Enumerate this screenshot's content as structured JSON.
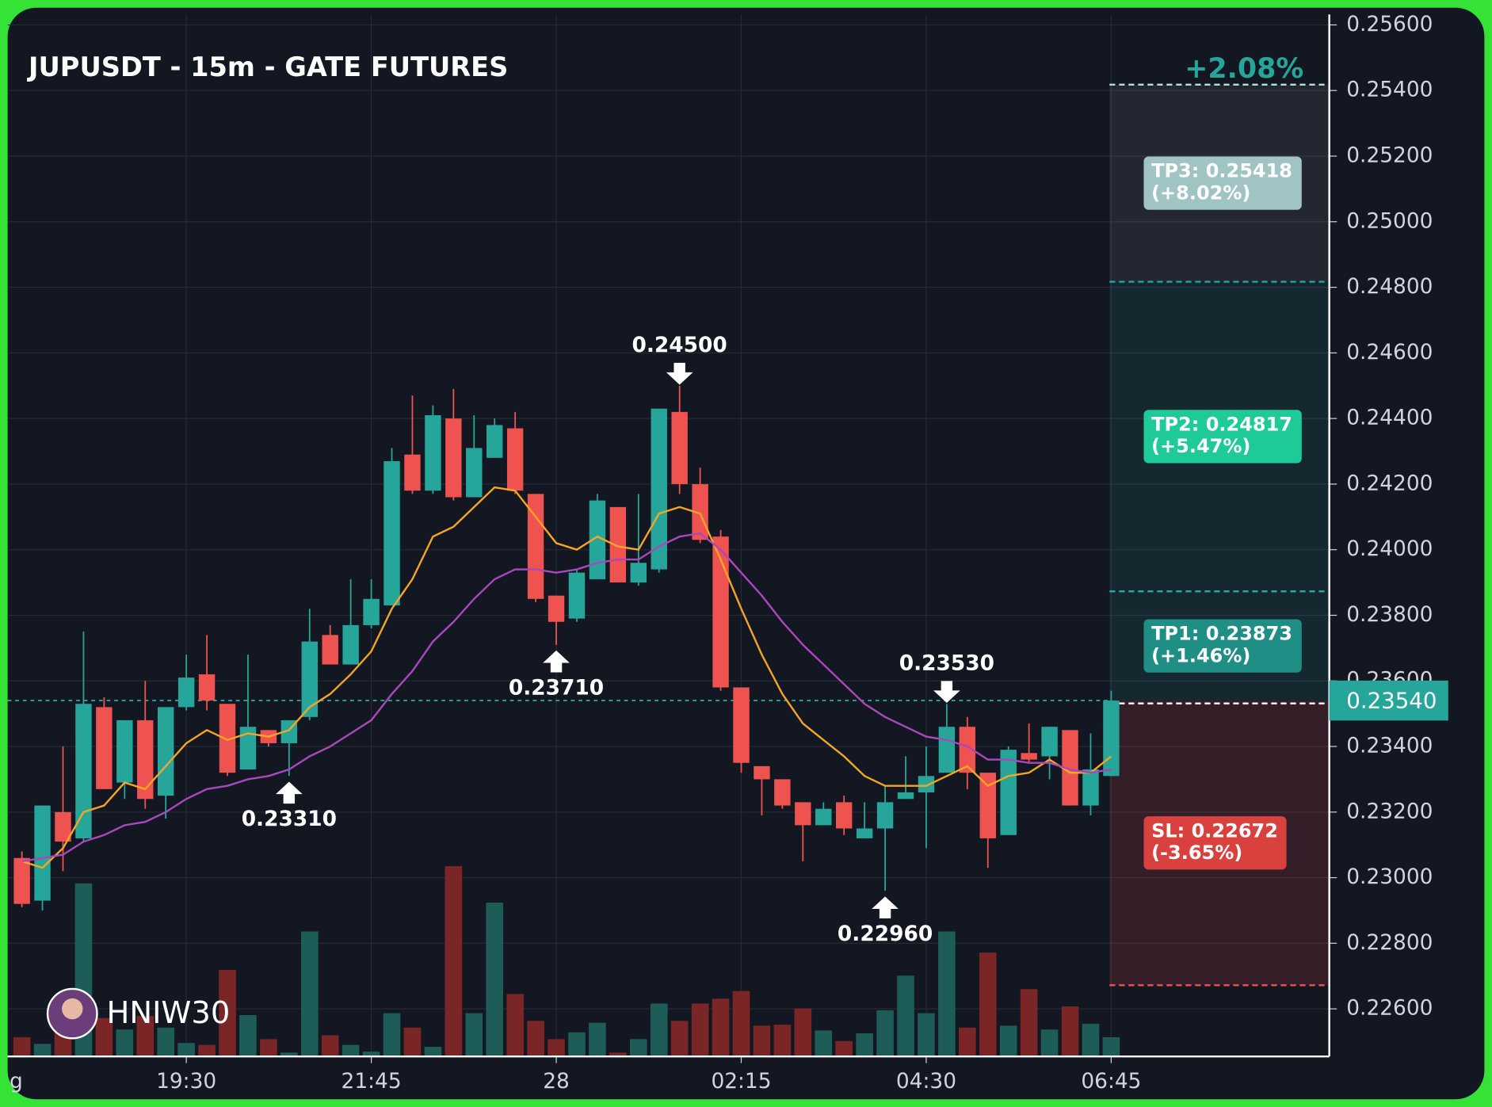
{
  "chart_data": {
    "type": "candlestick",
    "title": "JUPUSDT - 15m - GATE FUTURES",
    "change": "+2.08%",
    "watermark": "HNIW30",
    "ylim": [
      0.22455,
      0.25632
    ],
    "yticks": [
      {
        "value": 0.256,
        "label": "0.25600"
      },
      {
        "value": 0.254,
        "label": "0.25400"
      },
      {
        "value": 0.252,
        "label": "0.25200"
      },
      {
        "value": 0.25,
        "label": "0.25000"
      },
      {
        "value": 0.248,
        "label": "0.24800"
      },
      {
        "value": 0.246,
        "label": "0.24600"
      },
      {
        "value": 0.244,
        "label": "0.24400"
      },
      {
        "value": 0.242,
        "label": "0.24200"
      },
      {
        "value": 0.24,
        "label": "0.24000"
      },
      {
        "value": 0.238,
        "label": "0.23800"
      },
      {
        "value": 0.236,
        "label": "0.23600"
      },
      {
        "value": 0.234,
        "label": "0.23400"
      },
      {
        "value": 0.232,
        "label": "0.23200"
      },
      {
        "value": 0.23,
        "label": "0.23000"
      },
      {
        "value": 0.228,
        "label": "0.22800"
      },
      {
        "value": 0.226,
        "label": "0.22600"
      }
    ],
    "grid": true,
    "clipped_x_label": "g",
    "categories": [
      null,
      null,
      null,
      null,
      null,
      null,
      null,
      null,
      "19:30",
      null,
      null,
      null,
      null,
      null,
      null,
      null,
      null,
      "21:45",
      null,
      null,
      null,
      null,
      null,
      null,
      null,
      null,
      "28",
      null,
      null,
      null,
      null,
      null,
      null,
      null,
      null,
      "02:15",
      null,
      null,
      null,
      null,
      null,
      null,
      null,
      null,
      "04:30",
      null,
      null,
      null,
      null,
      null,
      null,
      null,
      null,
      "06:45"
    ],
    "open": [
      0.2306,
      0.2293,
      0.232,
      0.2312,
      0.2352,
      0.2329,
      0.2348,
      0.2325,
      0.2352,
      0.2362,
      0.2353,
      0.2333,
      0.2345,
      0.2341,
      0.2349,
      0.2374,
      0.2365,
      0.2377,
      0.2383,
      0.2429,
      0.2418,
      0.244,
      0.2416,
      0.2428,
      0.2437,
      0.2417,
      0.2386,
      0.2379,
      0.2391,
      0.2413,
      0.239,
      0.2394,
      0.2442,
      0.242,
      0.2404,
      0.2358,
      0.2334,
      0.233,
      0.2323,
      0.2316,
      0.2323,
      0.2312,
      0.2315,
      0.2324,
      0.2326,
      0.2332,
      0.2346,
      0.2332,
      0.2313,
      0.2338,
      0.2337,
      0.2345,
      0.2322,
      0.2331
    ],
    "high": [
      0.2308,
      0.2322,
      0.234,
      0.2375,
      0.2355,
      0.2348,
      0.236,
      0.2352,
      0.2368,
      0.2374,
      0.2353,
      0.2368,
      0.2345,
      0.2348,
      0.2382,
      0.2377,
      0.2391,
      0.2391,
      0.2431,
      0.2447,
      0.2444,
      0.2449,
      0.2441,
      0.244,
      0.2442,
      0.2417,
      0.2386,
      0.2394,
      0.2417,
      0.2413,
      0.2417,
      0.2443,
      0.245,
      0.2425,
      0.2406,
      0.2358,
      0.2334,
      0.233,
      0.2323,
      0.2323,
      0.2325,
      0.2323,
      0.2328,
      0.2337,
      0.234,
      0.2353,
      0.2349,
      0.2332,
      0.234,
      0.2347,
      0.2346,
      0.2345,
      0.2344,
      0.2357
    ],
    "low": [
      0.2291,
      0.229,
      0.2302,
      0.2311,
      0.2327,
      0.2324,
      0.2321,
      0.2318,
      0.2351,
      0.2351,
      0.2331,
      0.2333,
      0.234,
      0.2331,
      0.2348,
      0.2365,
      0.2365,
      0.2376,
      0.2383,
      0.2417,
      0.2417,
      0.2415,
      0.2416,
      0.2428,
      0.2417,
      0.2384,
      0.2371,
      0.2378,
      0.2391,
      0.239,
      0.2389,
      0.2393,
      0.2417,
      0.2402,
      0.2357,
      0.2332,
      0.2319,
      0.2321,
      0.2305,
      0.2316,
      0.2313,
      0.2312,
      0.2296,
      0.2324,
      0.2309,
      0.2332,
      0.2327,
      0.2303,
      0.2313,
      0.2335,
      0.233,
      0.2322,
      0.2319,
      0.2331
    ],
    "close": [
      0.2292,
      0.2322,
      0.2311,
      0.2353,
      0.2327,
      0.2348,
      0.2324,
      0.2352,
      0.2361,
      0.2354,
      0.2332,
      0.2346,
      0.2341,
      0.2348,
      0.2372,
      0.2365,
      0.2377,
      0.2385,
      0.2427,
      0.2418,
      0.2441,
      0.2416,
      0.2431,
      0.2438,
      0.2418,
      0.2385,
      0.2378,
      0.2393,
      0.2415,
      0.239,
      0.2396,
      0.2443,
      0.242,
      0.2403,
      0.2358,
      0.2335,
      0.233,
      0.2322,
      0.2316,
      0.2321,
      0.2315,
      0.2315,
      0.2323,
      0.2326,
      0.2331,
      0.2346,
      0.2332,
      0.2312,
      0.2339,
      0.2336,
      0.2346,
      0.2322,
      0.2333,
      0.2354
    ],
    "volume": [
      20,
      13,
      25,
      180,
      40,
      28,
      42,
      30,
      14,
      12,
      90,
      43,
      18,
      4,
      130,
      22,
      12,
      5,
      45,
      30,
      10,
      198,
      45,
      160,
      65,
      37,
      18,
      25,
      35,
      4,
      18,
      55,
      37,
      55,
      60,
      68,
      32,
      33,
      50,
      27,
      16,
      24,
      48,
      84,
      45,
      130,
      30,
      108,
      32,
      70,
      28,
      52,
      34,
      20
    ],
    "up_color": "#26a69a",
    "down_color": "#ef5350",
    "series": [
      {
        "color": "#f5a524",
        "values": [
          0.2305,
          0.2303,
          0.2309,
          0.232,
          0.2322,
          0.2329,
          0.2327,
          0.2334,
          0.2341,
          0.2345,
          0.2342,
          0.2344,
          0.2343,
          0.2345,
          0.2352,
          0.2356,
          0.2362,
          0.2369,
          0.2382,
          0.2391,
          0.2404,
          0.2407,
          0.2413,
          0.2419,
          0.2418,
          0.241,
          0.2402,
          0.24,
          0.2404,
          0.2401,
          0.24,
          0.2411,
          0.2413,
          0.2411,
          0.2397,
          0.2382,
          0.2368,
          0.2356,
          0.2347,
          0.2342,
          0.2337,
          0.2331,
          0.2328,
          0.2328,
          0.2328,
          0.2331,
          0.2334,
          0.2328,
          0.2331,
          0.2332,
          0.2336,
          0.2332,
          0.2332,
          0.2337
        ]
      },
      {
        "color": "#ab47bc",
        "values": [
          0.2305,
          0.2306,
          0.2307,
          0.2311,
          0.2313,
          0.2316,
          0.2317,
          0.232,
          0.2324,
          0.2327,
          0.2328,
          0.233,
          0.2331,
          0.2333,
          0.2337,
          0.234,
          0.2344,
          0.2348,
          0.2356,
          0.2363,
          0.2372,
          0.2378,
          0.2385,
          0.2391,
          0.2394,
          0.2394,
          0.2393,
          0.2394,
          0.2396,
          0.2397,
          0.2397,
          0.2401,
          0.2404,
          0.2405,
          0.24,
          0.2393,
          0.2386,
          0.2378,
          0.2371,
          0.2365,
          0.2359,
          0.2353,
          0.2349,
          0.2346,
          0.2343,
          0.2342,
          0.234,
          0.2336,
          0.2336,
          0.2335,
          0.2335,
          0.2333,
          0.2332,
          0.2333
        ]
      }
    ],
    "annotations": [
      {
        "text": "0.23310",
        "candle": 13,
        "side": "low"
      },
      {
        "text": "0.23710",
        "candle": 26,
        "side": "low"
      },
      {
        "text": "0.24500",
        "candle": 32,
        "side": "high"
      },
      {
        "text": "0.22960",
        "candle": 42,
        "side": "low"
      },
      {
        "text": "0.23530",
        "candle": 45,
        "side": "high"
      }
    ],
    "price": {
      "value": 0.2354,
      "label": "0.23540"
    },
    "targets": [
      {
        "value": 0.25418,
        "label": "TP3: 0.25418",
        "pct": "(+8.02%)",
        "color": "#9fc4c3",
        "line": "#b2dfdb"
      },
      {
        "value": 0.24817,
        "label": "TP2: 0.24817",
        "pct": "(+5.47%)",
        "color": "#1ecb98",
        "line": "#26a69a"
      },
      {
        "value": 0.23873,
        "label": "TP1: 0.23873",
        "pct": "(+1.46%)",
        "color": "#1f8f85",
        "line": "#26a69a"
      }
    ],
    "stop": {
      "value": 0.22672,
      "label": "SL: 0.22672",
      "pct": "(-3.65%)",
      "color": "#d9413f",
      "line": "#ef5350"
    }
  }
}
